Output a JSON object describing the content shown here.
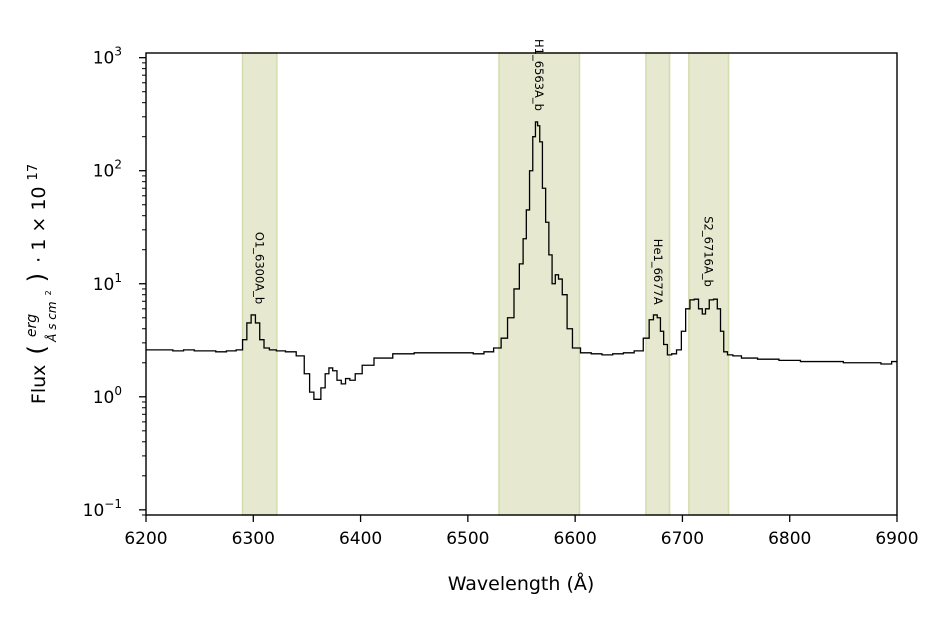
{
  "chart_data": {
    "type": "line",
    "title": "",
    "xlabel": "Wavelength (Å)",
    "ylabel": {
      "prefix": "Flux",
      "unit_numerator": "erg",
      "unit_denominator": "Å s cm",
      "unit_denominator_exp": "2",
      "factor": "· 1 × 10",
      "factor_exp": "17"
    },
    "xlim": [
      6200,
      6900
    ],
    "ylim": [
      0.09,
      1100
    ],
    "yscale": "log",
    "grid": false,
    "x_ticks": [
      6200,
      6300,
      6400,
      6500,
      6600,
      6700,
      6800,
      6900
    ],
    "y_ticks": [
      {
        "value": 0.1,
        "label_base": "10",
        "label_exp": "−1"
      },
      {
        "value": 1,
        "label_base": "10",
        "label_exp": "0"
      },
      {
        "value": 10,
        "label_base": "10",
        "label_exp": "1"
      },
      {
        "value": 100,
        "label_base": "10",
        "label_exp": "2"
      },
      {
        "value": 1000,
        "label_base": "10",
        "label_exp": "3"
      }
    ],
    "bands": [
      {
        "label": "O1_6300A_b",
        "x0": 6290,
        "x1": 6322
      },
      {
        "label": "H1_6563A_b",
        "x0": 6529,
        "x1": 6604
      },
      {
        "label": "He1_6677A",
        "x0": 6666,
        "x1": 6688
      },
      {
        "label": "S2_6716A_b",
        "x0": 6706,
        "x1": 6743
      }
    ],
    "band_color": "#e6e9cf",
    "band_edge_color": "#d3dcaf",
    "line_color": "#000000",
    "series": [
      {
        "step": "mid",
        "x": [
          6200,
          6210,
          6220,
          6230,
          6240,
          6250,
          6260,
          6270,
          6280,
          6288,
          6292,
          6296,
          6300,
          6304,
          6308,
          6312,
          6318,
          6325,
          6335,
          6345,
          6350,
          6355,
          6358,
          6361,
          6365,
          6369,
          6372,
          6376,
          6380,
          6384,
          6388,
          6392,
          6398,
          6405,
          6420,
          6440,
          6460,
          6480,
          6500,
          6510,
          6520,
          6528,
          6534,
          6540,
          6546,
          6550,
          6553,
          6556,
          6559,
          6562,
          6564,
          6566,
          6568,
          6571,
          6574,
          6577,
          6580,
          6583,
          6586,
          6590,
          6595,
          6600,
          6610,
          6620,
          6630,
          6640,
          6650,
          6660,
          6667,
          6671,
          6675,
          6678,
          6681,
          6684,
          6688,
          6692,
          6697,
          6701,
          6705,
          6709,
          6713,
          6717,
          6720,
          6723,
          6727,
          6731,
          6734,
          6737,
          6740,
          6744,
          6750,
          6760,
          6780,
          6800,
          6820,
          6840,
          6860,
          6880,
          6890,
          6900
        ],
        "y": [
          2.6,
          2.6,
          2.6,
          2.55,
          2.6,
          2.55,
          2.55,
          2.5,
          2.55,
          2.6,
          3.2,
          4.5,
          5.3,
          4.5,
          3.2,
          2.7,
          2.6,
          2.55,
          2.5,
          2.3,
          1.6,
          1.1,
          0.95,
          0.95,
          1.2,
          1.6,
          1.8,
          1.7,
          1.4,
          1.3,
          1.45,
          1.4,
          1.6,
          1.9,
          2.2,
          2.4,
          2.45,
          2.45,
          2.45,
          2.4,
          2.5,
          2.7,
          3.3,
          5.0,
          9.0,
          15,
          25,
          45,
          100,
          200,
          270,
          250,
          180,
          70,
          35,
          18,
          10,
          12,
          11,
          8,
          4,
          2.7,
          2.45,
          2.4,
          2.35,
          2.4,
          2.45,
          2.55,
          3.3,
          4.8,
          5.3,
          5.0,
          3.8,
          2.9,
          2.35,
          2.4,
          2.6,
          3.8,
          6.0,
          7.2,
          7.3,
          6.0,
          5.4,
          6.0,
          7.2,
          7.3,
          6.0,
          3.8,
          2.5,
          2.35,
          2.3,
          2.2,
          2.15,
          2.1,
          2.05,
          2.05,
          2.0,
          2.0,
          1.95,
          2.05
        ]
      }
    ]
  }
}
